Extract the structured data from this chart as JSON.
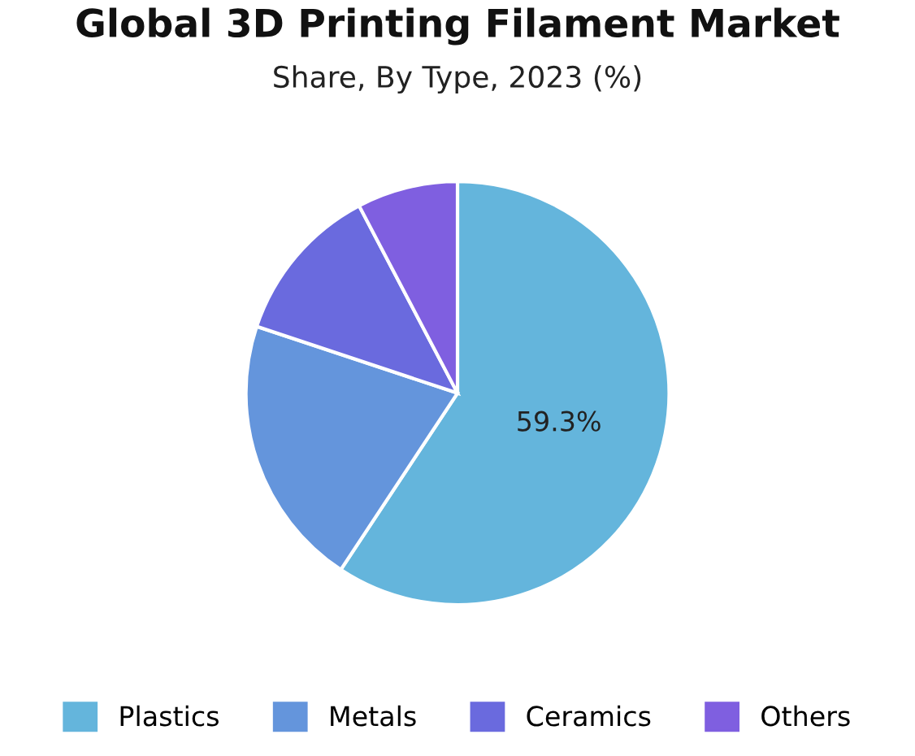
{
  "chart_data": {
    "type": "pie",
    "title": "Global 3D Printing Filament Market",
    "subtitle": "Share, By Type, 2023 (%)",
    "categories": [
      "Plastics",
      "Metals",
      "Ceramics",
      "Others"
    ],
    "values": [
      59.3,
      20.8,
      12.2,
      7.7
    ],
    "colors": [
      "#64b5dc",
      "#6495dc",
      "#6a6ade",
      "#7f5fe0"
    ],
    "value_labels": [
      "59.3%",
      null,
      null,
      null
    ],
    "legend": "bottom"
  }
}
